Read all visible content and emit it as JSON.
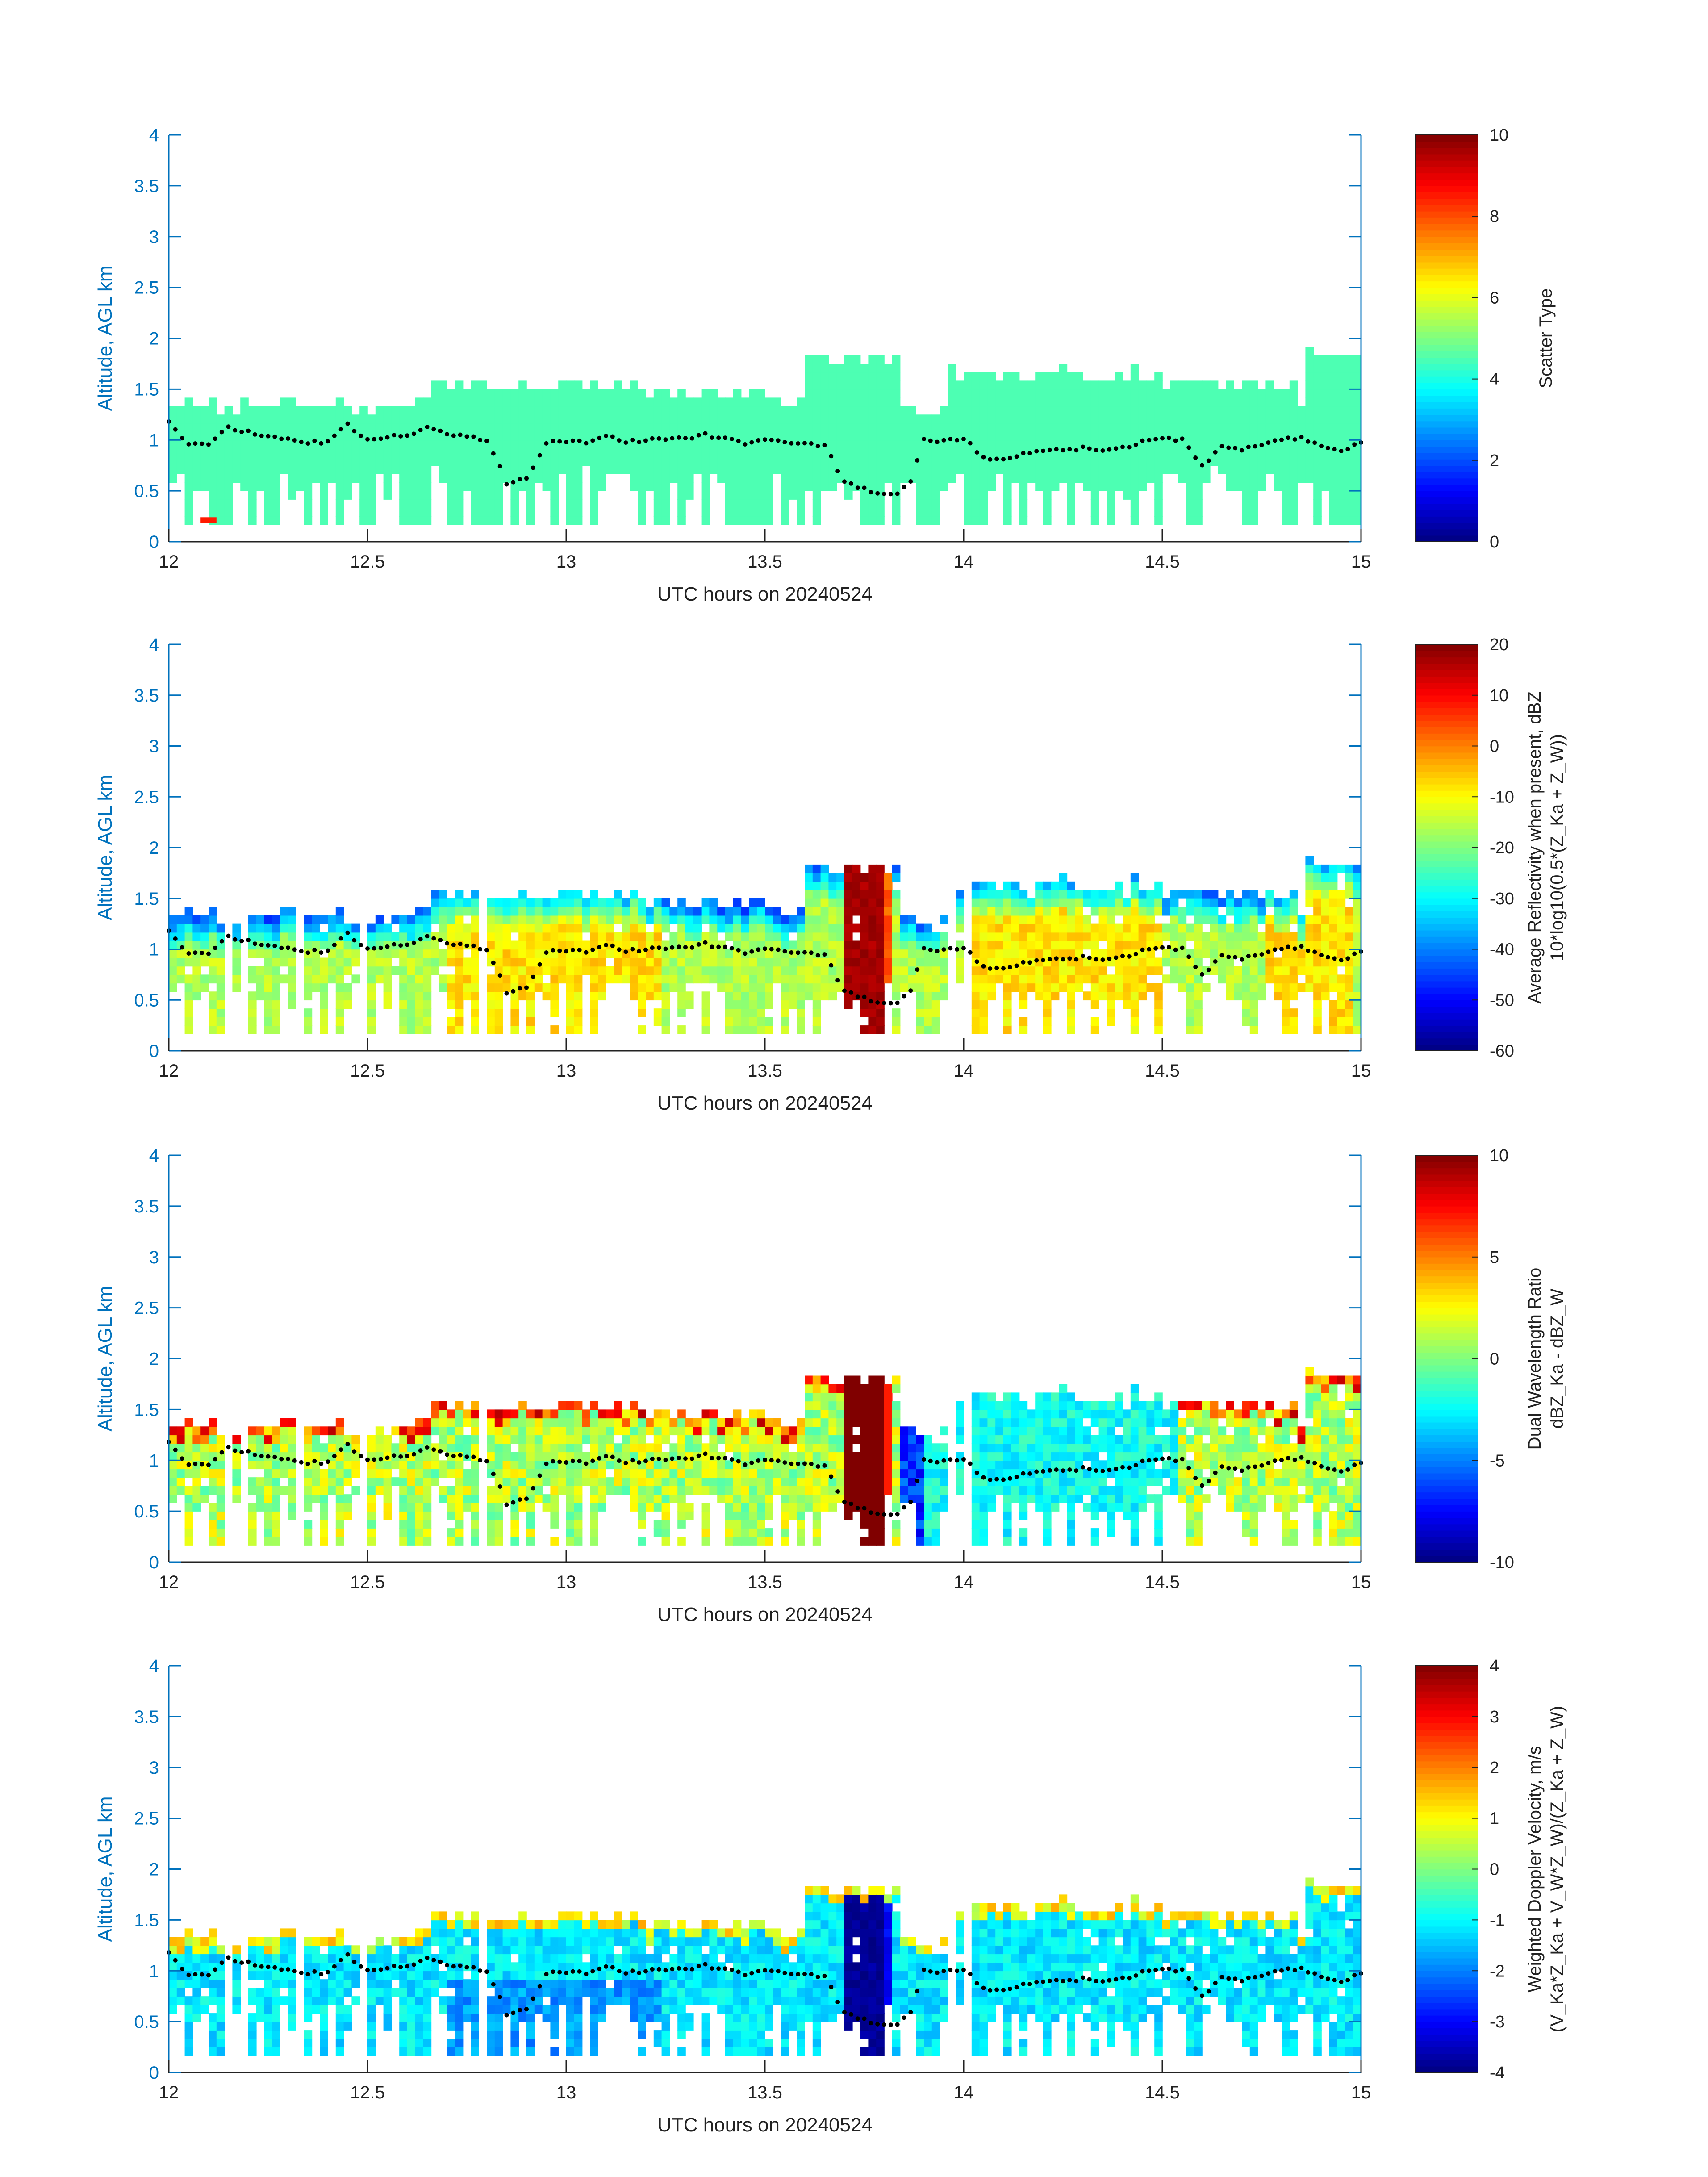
{
  "colors": {
    "axis": "#0072BD",
    "text": "#222222",
    "dots": "#000000"
  },
  "chart_data": [
    {
      "type": "heatmap",
      "ylabel": "Altitude, AGL km",
      "xlabel": "UTC hours on 20240524",
      "xlim": [
        12,
        15
      ],
      "ylim": [
        0,
        4
      ],
      "xticks": [
        "12",
        "12.5",
        "13",
        "13.5",
        "14",
        "14.5",
        "15"
      ],
      "yticks": [
        "0",
        "0.5",
        "1",
        "1.5",
        "2",
        "2.5",
        "3",
        "3.5",
        "4"
      ],
      "colorbar": {
        "label_lines": [
          "Scatter Type"
        ],
        "limits": [
          0,
          10
        ],
        "ticks": [
          "0",
          "2",
          "4",
          "6",
          "8",
          "10"
        ]
      },
      "field": "scatter_type"
    },
    {
      "type": "heatmap",
      "ylabel": "Altitude, AGL km",
      "xlabel": "UTC hours on 20240524",
      "xlim": [
        12,
        15
      ],
      "ylim": [
        0,
        4
      ],
      "xticks": [
        "12",
        "12.5",
        "13",
        "13.5",
        "14",
        "14.5",
        "15"
      ],
      "yticks": [
        "0",
        "0.5",
        "1",
        "1.5",
        "2",
        "2.5",
        "3",
        "3.5",
        "4"
      ],
      "colorbar": {
        "label_lines": [
          "Average Reflectivity when present, dBZ",
          "10*log10(0.5*(Z_Ka + Z_W))"
        ],
        "limits": [
          -60,
          20
        ],
        "ticks": [
          "-60",
          "-50",
          "-40",
          "-30",
          "-20",
          "-10",
          "0",
          "10",
          "20"
        ]
      },
      "field": "reflectivity"
    },
    {
      "type": "heatmap",
      "ylabel": "Altitude, AGL km",
      "xlabel": "UTC hours on 20240524",
      "xlim": [
        12,
        15
      ],
      "ylim": [
        0,
        4
      ],
      "xticks": [
        "12",
        "12.5",
        "13",
        "13.5",
        "14",
        "14.5",
        "15"
      ],
      "yticks": [
        "0",
        "0.5",
        "1",
        "1.5",
        "2",
        "2.5",
        "3",
        "3.5",
        "4"
      ],
      "colorbar": {
        "label_lines": [
          "Dual Wavelength Ratio",
          "dBZ_Ka - dBZ_W"
        ],
        "limits": [
          -10,
          10
        ],
        "ticks": [
          "-10",
          "-5",
          "0",
          "5",
          "10"
        ]
      },
      "field": "dwr"
    },
    {
      "type": "heatmap",
      "ylabel": "Altitude, AGL km",
      "xlabel": "UTC hours on 20240524",
      "xlim": [
        12,
        15
      ],
      "ylim": [
        0,
        4
      ],
      "xticks": [
        "12",
        "12.5",
        "13",
        "13.5",
        "14",
        "14.5",
        "15"
      ],
      "yticks": [
        "0",
        "0.5",
        "1",
        "1.5",
        "2",
        "2.5",
        "3",
        "3.5",
        "4"
      ],
      "colorbar": {
        "label_lines": [
          "Weighted Doppler Velocity, m/s",
          "(V_Ka*Z_Ka + V_W*Z_W)/(Z_Ka + Z_W)"
        ],
        "limits": [
          -4,
          4
        ],
        "ticks": [
          "-4",
          "-3",
          "-2",
          "-1",
          "0",
          "1",
          "2",
          "3",
          "4"
        ]
      },
      "field": "velocity"
    }
  ],
  "cloud_base_km": [
    [
      12.0,
      1.18
    ],
    [
      12.05,
      0.95
    ],
    [
      12.1,
      0.97
    ],
    [
      12.15,
      1.12
    ],
    [
      12.2,
      1.08
    ],
    [
      12.25,
      1.03
    ],
    [
      12.3,
      1.01
    ],
    [
      12.35,
      0.98
    ],
    [
      12.4,
      0.98
    ],
    [
      12.45,
      1.15
    ],
    [
      12.5,
      1.0
    ],
    [
      12.55,
      1.03
    ],
    [
      12.6,
      1.05
    ],
    [
      12.65,
      1.12
    ],
    [
      12.7,
      1.06
    ],
    [
      12.75,
      1.04
    ],
    [
      12.8,
      0.98
    ],
    [
      12.83,
      0.78
    ],
    [
      12.85,
      0.57
    ],
    [
      12.9,
      0.62
    ],
    [
      12.95,
      0.98
    ],
    [
      13.0,
      0.99
    ],
    [
      13.05,
      0.98
    ],
    [
      13.1,
      1.04
    ],
    [
      13.15,
      0.98
    ],
    [
      13.2,
      1.0
    ],
    [
      13.25,
      1.01
    ],
    [
      13.3,
      1.02
    ],
    [
      13.35,
      1.05
    ],
    [
      13.4,
      1.01
    ],
    [
      13.45,
      0.97
    ],
    [
      13.5,
      0.99
    ],
    [
      13.55,
      0.98
    ],
    [
      13.6,
      0.96
    ],
    [
      13.65,
      0.95
    ],
    [
      13.7,
      0.58
    ],
    [
      13.75,
      0.52
    ],
    [
      13.8,
      0.46
    ],
    [
      13.83,
      0.45
    ],
    [
      13.87,
      0.62
    ],
    [
      13.9,
      1.0
    ],
    [
      13.95,
      0.99
    ],
    [
      14.0,
      1.02
    ],
    [
      14.05,
      0.82
    ],
    [
      14.1,
      0.82
    ],
    [
      14.15,
      0.86
    ],
    [
      14.2,
      0.89
    ],
    [
      14.25,
      0.9
    ],
    [
      14.3,
      0.92
    ],
    [
      14.35,
      0.89
    ],
    [
      14.4,
      0.92
    ],
    [
      14.45,
      0.98
    ],
    [
      14.5,
      1.02
    ],
    [
      14.55,
      1.0
    ],
    [
      14.6,
      0.75
    ],
    [
      14.65,
      0.93
    ],
    [
      14.7,
      0.9
    ],
    [
      14.75,
      0.96
    ],
    [
      14.8,
      1.0
    ],
    [
      14.85,
      1.03
    ],
    [
      14.9,
      0.93
    ],
    [
      14.95,
      0.88
    ],
    [
      15.0,
      0.98
    ]
  ]
}
